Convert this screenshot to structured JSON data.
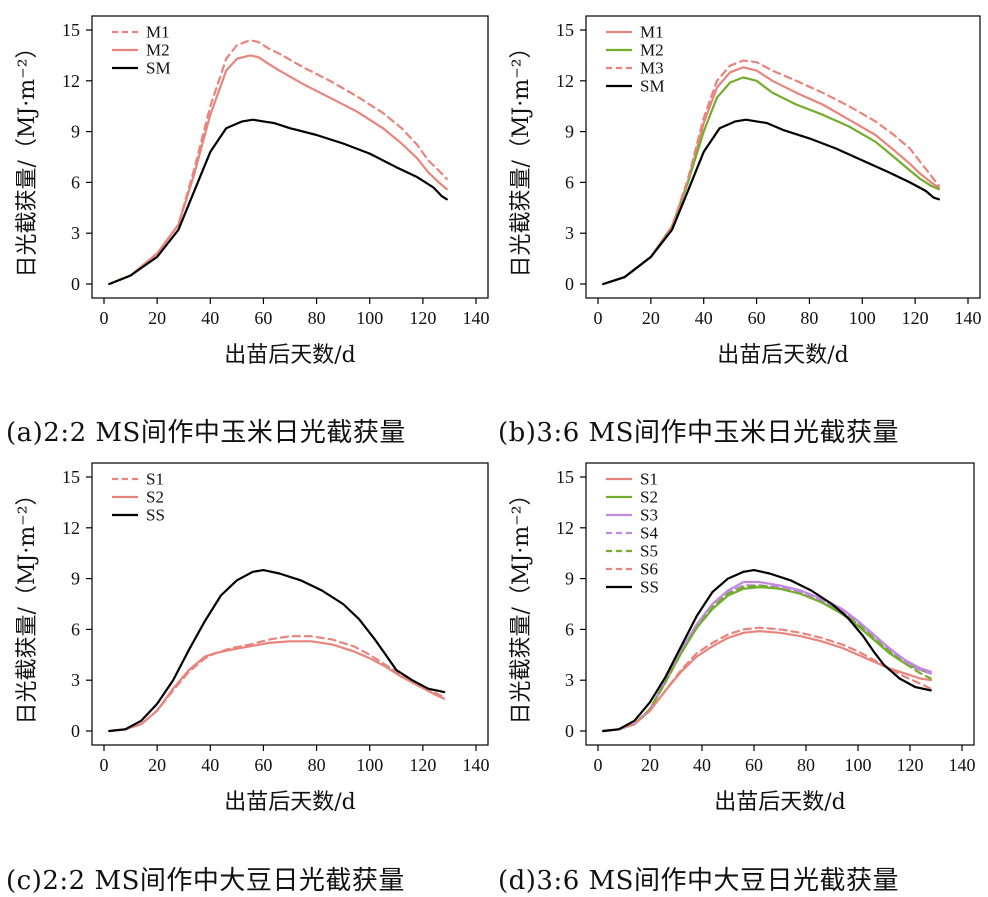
{
  "colors": {
    "salmon": "#e8847c",
    "green": "#73ad2c",
    "violet": "#c388e0",
    "black": "#000000"
  },
  "chart_data": [
    {
      "type": "line",
      "caption": "(a)2:2 MS间作中玉米日光截获量",
      "xlabel": "出苗后天数/d",
      "ylabel": "日光截获量/（MJ·m⁻²）",
      "xlim": [
        0,
        140
      ],
      "ylim": [
        0,
        15
      ],
      "xticks": [
        0,
        20,
        40,
        60,
        80,
        100,
        120,
        140
      ],
      "yticks": [
        0,
        3,
        6,
        9,
        12,
        15
      ],
      "legend": "top-left",
      "grid": false,
      "series": [
        {
          "name": "M1",
          "color": "#e8847c",
          "dash": true,
          "x": [
            2,
            10,
            20,
            28,
            34,
            40,
            46,
            50,
            55,
            58,
            62,
            66,
            75,
            85,
            95,
            105,
            112,
            118,
            122,
            126,
            129
          ],
          "y": [
            0,
            0.5,
            1.8,
            3.5,
            6.8,
            10.5,
            13.3,
            14.1,
            14.4,
            14.3,
            13.9,
            13.6,
            12.8,
            12,
            11.1,
            10.1,
            9.2,
            8.2,
            7.3,
            6.7,
            6.2
          ]
        },
        {
          "name": "M2",
          "color": "#e8847c",
          "dash": false,
          "x": [
            2,
            10,
            20,
            28,
            34,
            40,
            46,
            50,
            55,
            58,
            62,
            66,
            75,
            85,
            95,
            105,
            112,
            118,
            122,
            126,
            129
          ],
          "y": [
            0,
            0.5,
            1.8,
            3.5,
            6.5,
            10,
            12.6,
            13.3,
            13.5,
            13.4,
            13,
            12.6,
            11.8,
            11,
            10.2,
            9.2,
            8.3,
            7.4,
            6.6,
            6,
            5.6
          ]
        },
        {
          "name": "SM",
          "color": "#000000",
          "dash": false,
          "x": [
            2,
            10,
            20,
            28,
            34,
            40,
            46,
            52,
            56,
            60,
            64,
            70,
            80,
            90,
            100,
            110,
            118,
            124,
            127,
            129
          ],
          "y": [
            0,
            0.5,
            1.6,
            3.2,
            5.5,
            7.8,
            9.2,
            9.6,
            9.7,
            9.6,
            9.5,
            9.2,
            8.8,
            8.3,
            7.7,
            6.9,
            6.3,
            5.7,
            5.2,
            5
          ]
        }
      ]
    },
    {
      "type": "line",
      "caption": "(b)3:6 MS间作中玉米日光截获量",
      "xlabel": "出苗后天数/d",
      "ylabel": "日光截获量/（MJ·m⁻²）",
      "xlim": [
        0,
        140
      ],
      "ylim": [
        0,
        15
      ],
      "xticks": [
        0,
        20,
        40,
        60,
        80,
        100,
        120,
        140
      ],
      "yticks": [
        0,
        3,
        6,
        9,
        12,
        15
      ],
      "legend": "top-left",
      "grid": false,
      "series": [
        {
          "name": "M1",
          "color": "#e8847c",
          "dash": false,
          "x": [
            2,
            10,
            20,
            28,
            34,
            40,
            45,
            50,
            55,
            60,
            66,
            75,
            85,
            95,
            105,
            112,
            118,
            122,
            126,
            129
          ],
          "y": [
            0,
            0.4,
            1.6,
            3.4,
            6,
            9.5,
            11.6,
            12.5,
            12.8,
            12.6,
            12,
            11.3,
            10.6,
            9.7,
            8.8,
            7.9,
            7.1,
            6.5,
            6,
            5.7
          ]
        },
        {
          "name": "M2",
          "color": "#73ad2c",
          "dash": false,
          "x": [
            2,
            10,
            20,
            28,
            34,
            40,
            45,
            50,
            55,
            60,
            66,
            75,
            85,
            95,
            105,
            112,
            118,
            122,
            126,
            129
          ],
          "y": [
            0,
            0.4,
            1.6,
            3.4,
            6,
            9,
            11,
            11.9,
            12.2,
            12,
            11.3,
            10.6,
            10,
            9.3,
            8.4,
            7.5,
            6.7,
            6.2,
            5.8,
            5.6
          ]
        },
        {
          "name": "M3",
          "color": "#e8847c",
          "dash": true,
          "x": [
            2,
            10,
            20,
            28,
            34,
            40,
            45,
            50,
            55,
            60,
            66,
            75,
            85,
            95,
            105,
            112,
            118,
            122,
            126,
            129
          ],
          "y": [
            0,
            0.4,
            1.6,
            3.4,
            6.2,
            9.8,
            12,
            12.9,
            13.2,
            13.1,
            12.6,
            12,
            11.3,
            10.5,
            9.6,
            8.8,
            8,
            7.2,
            6.4,
            5.8
          ]
        },
        {
          "name": "SM",
          "color": "#000000",
          "dash": false,
          "x": [
            2,
            10,
            20,
            28,
            34,
            40,
            46,
            52,
            56,
            60,
            64,
            70,
            80,
            90,
            100,
            110,
            118,
            124,
            127,
            129
          ],
          "y": [
            0,
            0.4,
            1.6,
            3.2,
            5.5,
            7.8,
            9.2,
            9.6,
            9.7,
            9.6,
            9.5,
            9.1,
            8.6,
            8,
            7.3,
            6.6,
            6,
            5.5,
            5.1,
            5
          ]
        }
      ]
    },
    {
      "type": "line",
      "caption": "(c)2:2 MS间作中大豆日光截获量",
      "xlabel": "出苗后天数/d",
      "ylabel": "日光截获量/（MJ·m⁻²）",
      "xlim": [
        0,
        140
      ],
      "ylim": [
        0,
        15
      ],
      "xticks": [
        0,
        20,
        40,
        60,
        80,
        100,
        120,
        140
      ],
      "yticks": [
        0,
        3,
        6,
        9,
        12,
        15
      ],
      "legend": "top-left",
      "grid": false,
      "series": [
        {
          "name": "S1",
          "color": "#e8847c",
          "dash": true,
          "x": [
            2,
            8,
            14,
            20,
            26,
            32,
            38,
            42,
            48,
            55,
            62,
            70,
            78,
            86,
            94,
            100,
            106,
            112,
            118,
            124,
            128
          ],
          "y": [
            0,
            0.1,
            0.4,
            1.2,
            2.4,
            3.5,
            4.3,
            4.6,
            4.9,
            5.1,
            5.4,
            5.6,
            5.6,
            5.4,
            5,
            4.5,
            3.9,
            3.3,
            2.8,
            2.3,
            2
          ]
        },
        {
          "name": "S2",
          "color": "#e8847c",
          "dash": false,
          "x": [
            2,
            8,
            14,
            20,
            26,
            32,
            38,
            42,
            48,
            55,
            62,
            70,
            78,
            86,
            94,
            100,
            106,
            112,
            118,
            124,
            128
          ],
          "y": [
            0,
            0.1,
            0.4,
            1.2,
            2.5,
            3.6,
            4.4,
            4.6,
            4.8,
            5,
            5.2,
            5.3,
            5.3,
            5.1,
            4.7,
            4.3,
            3.8,
            3.2,
            2.7,
            2.2,
            1.9
          ]
        },
        {
          "name": "SS",
          "color": "#000000",
          "dash": false,
          "x": [
            2,
            8,
            14,
            20,
            26,
            32,
            38,
            44,
            50,
            56,
            60,
            66,
            74,
            82,
            90,
            96,
            102,
            106,
            110,
            116,
            122,
            128
          ],
          "y": [
            0,
            0.1,
            0.6,
            1.6,
            3,
            4.8,
            6.5,
            8,
            8.9,
            9.4,
            9.5,
            9.3,
            8.9,
            8.3,
            7.5,
            6.6,
            5.4,
            4.5,
            3.6,
            3,
            2.5,
            2.3
          ]
        }
      ]
    },
    {
      "type": "line",
      "caption": "(d)3:6 MS间作中大豆日光截获量",
      "xlabel": "出苗后天数/d",
      "ylabel": "日光截获量/（MJ·m⁻²）",
      "xlim": [
        0,
        140
      ],
      "ylim": [
        0,
        15
      ],
      "xticks": [
        0,
        20,
        40,
        60,
        80,
        100,
        120,
        140
      ],
      "yticks": [
        0,
        3,
        6,
        9,
        12,
        15
      ],
      "legend": "top-left",
      "grid": false,
      "series": [
        {
          "name": "S1",
          "color": "#e8847c",
          "dash": false,
          "x": [
            2,
            8,
            14,
            20,
            26,
            32,
            38,
            44,
            50,
            56,
            62,
            70,
            78,
            86,
            94,
            100,
            106,
            112,
            118,
            124,
            128
          ],
          "y": [
            0,
            0.1,
            0.4,
            1.2,
            2.4,
            3.5,
            4.4,
            5,
            5.5,
            5.8,
            5.9,
            5.8,
            5.6,
            5.3,
            4.9,
            4.5,
            4.1,
            3.7,
            3.4,
            3.1,
            3
          ]
        },
        {
          "name": "S2",
          "color": "#73ad2c",
          "dash": false,
          "x": [
            2,
            8,
            14,
            20,
            26,
            32,
            38,
            44,
            50,
            56,
            62,
            70,
            78,
            86,
            94,
            100,
            106,
            112,
            118,
            124,
            128
          ],
          "y": [
            0,
            0.1,
            0.4,
            1.3,
            2.9,
            4.6,
            6.1,
            7.2,
            8,
            8.4,
            8.5,
            8.4,
            8.1,
            7.6,
            6.9,
            6.2,
            5.4,
            4.6,
            4,
            3.6,
            3.4
          ]
        },
        {
          "name": "S3",
          "color": "#c388e0",
          "dash": false,
          "x": [
            2,
            8,
            14,
            20,
            26,
            32,
            38,
            44,
            50,
            56,
            62,
            70,
            78,
            86,
            94,
            100,
            106,
            112,
            118,
            124,
            128
          ],
          "y": [
            0,
            0.1,
            0.4,
            1.3,
            3,
            4.8,
            6.3,
            7.5,
            8.3,
            8.8,
            8.8,
            8.6,
            8.3,
            7.8,
            7.2,
            6.5,
            5.7,
            4.9,
            4.2,
            3.7,
            3.5
          ]
        },
        {
          "name": "S4",
          "color": "#c388e0",
          "dash": true,
          "x": [
            2,
            8,
            14,
            20,
            26,
            32,
            38,
            44,
            50,
            56,
            62,
            70,
            78,
            86,
            94,
            100,
            106,
            112,
            118,
            124,
            128
          ],
          "y": [
            0,
            0.1,
            0.4,
            1.3,
            2.9,
            4.7,
            6.2,
            7.4,
            8.2,
            8.6,
            8.6,
            8.5,
            8.2,
            7.7,
            7.1,
            6.4,
            5.6,
            4.8,
            4.1,
            3.6,
            3.4
          ]
        },
        {
          "name": "S5",
          "color": "#73ad2c",
          "dash": true,
          "x": [
            2,
            8,
            14,
            20,
            26,
            32,
            38,
            44,
            50,
            56,
            62,
            70,
            78,
            86,
            94,
            100,
            106,
            112,
            118,
            124,
            128
          ],
          "y": [
            0,
            0.1,
            0.4,
            1.3,
            2.9,
            4.6,
            6.1,
            7.3,
            8.1,
            8.5,
            8.6,
            8.4,
            8.1,
            7.6,
            7,
            6.3,
            5.5,
            4.7,
            4,
            3.4,
            3.1
          ]
        },
        {
          "name": "S6",
          "color": "#e8847c",
          "dash": true,
          "x": [
            2,
            8,
            14,
            20,
            26,
            32,
            38,
            44,
            50,
            56,
            62,
            70,
            78,
            86,
            94,
            100,
            106,
            112,
            118,
            124,
            128
          ],
          "y": [
            0,
            0.1,
            0.4,
            1.2,
            2.4,
            3.6,
            4.6,
            5.2,
            5.7,
            6,
            6.1,
            6,
            5.8,
            5.5,
            5.1,
            4.7,
            4.2,
            3.7,
            3.2,
            2.8,
            2.5
          ]
        },
        {
          "name": "SS",
          "color": "#000000",
          "dash": false,
          "x": [
            2,
            8,
            14,
            20,
            26,
            32,
            38,
            44,
            50,
            56,
            60,
            66,
            74,
            82,
            90,
            96,
            102,
            106,
            110,
            116,
            122,
            128
          ],
          "y": [
            0,
            0.1,
            0.6,
            1.7,
            3.2,
            5,
            6.8,
            8.2,
            9,
            9.4,
            9.5,
            9.3,
            8.9,
            8.3,
            7.5,
            6.7,
            5.6,
            4.7,
            3.9,
            3.1,
            2.6,
            2.4
          ]
        }
      ]
    }
  ]
}
